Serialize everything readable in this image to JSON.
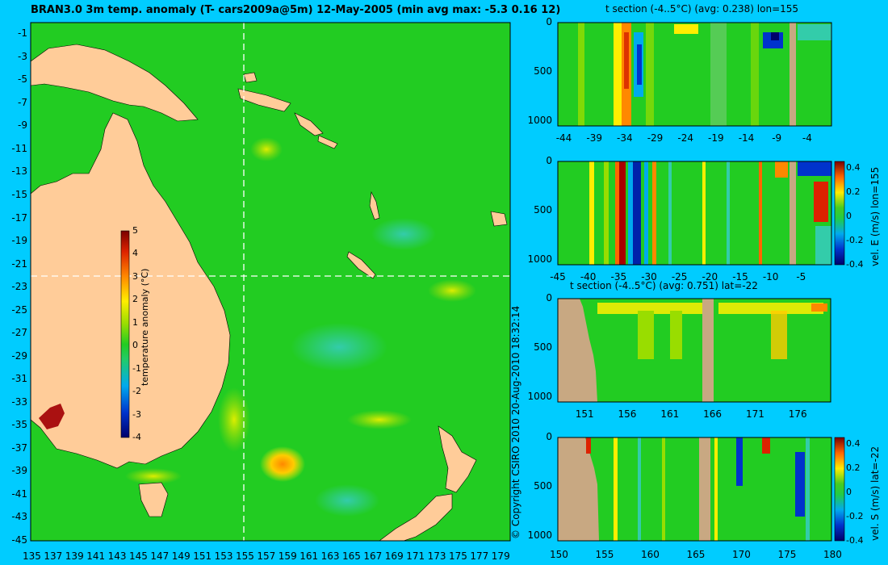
{
  "main": {
    "title": "BRAN3.0 3m temp. anomaly (T- cars2009a@5m) 12-May-2005 (min avg max: -5.3 0.16 12)",
    "colorbar_label": "temperature anomaly (°C)",
    "copyright": "© Copyright CSIRO 2010   20-Aug-2010 18:32:14"
  },
  "panels": {
    "p1_title": "t section (-4..5°C) (avg: 0.238) lon=155",
    "p2_label": "vel. E (m/s) lon=155",
    "p3_title": "t section (-4..5°C) (avg: 0.751) lat=-22",
    "p4_label": "vel. S (m/s) lat=-22"
  },
  "colors": {
    "background": "#00CCFF",
    "ocean": "#22CC22",
    "land": "#FFCC99",
    "section_land": "#C8A882"
  },
  "chart_data": [
    {
      "type": "heatmap",
      "title": "BRAN3.0 3m temp. anomaly (T- cars2009a@5m) 12-May-2005 (min avg max: -5.3 0.16 12)",
      "x_ticks": [
        "135",
        "137",
        "139",
        "141",
        "143",
        "145",
        "147",
        "149",
        "151",
        "153",
        "155",
        "157",
        "159",
        "161",
        "163",
        "165",
        "167",
        "169",
        "171",
        "173",
        "175",
        "177",
        "179"
      ],
      "y_ticks": [
        "-1",
        "-3",
        "-5",
        "-7",
        "-9",
        "-11",
        "-13",
        "-15",
        "-17",
        "-19",
        "-21",
        "-23",
        "-25",
        "-27",
        "-29",
        "-31",
        "-33",
        "-35",
        "-37",
        "-39",
        "-41",
        "-43",
        "-45"
      ],
      "xlim": [
        135,
        180
      ],
      "ylim": [
        -45,
        0
      ],
      "crosshair": {
        "lon": 155,
        "lat": -22
      },
      "colorbar": {
        "label": "temperature anomaly (°C)",
        "range": [
          -4,
          5
        ],
        "ticks": [
          "5",
          "4",
          "3",
          "2",
          "1",
          "0",
          "-1",
          "-2",
          "-3",
          "-4"
        ]
      },
      "summary": {
        "min": -5.3,
        "avg": 0.16,
        "max": 12
      }
    },
    {
      "type": "heatmap",
      "title": "t section (-4..5°C) (avg: 0.238) lon=155",
      "x_ticks": [
        "-44",
        "-39",
        "-34",
        "-29",
        "-24",
        "-19",
        "-14",
        "-9",
        "-4"
      ],
      "y_ticks": [
        "0",
        "500",
        "1000"
      ],
      "xlim": [
        -45,
        0
      ],
      "ylim": [
        1050,
        0
      ]
    },
    {
      "type": "heatmap",
      "title": "",
      "x_ticks": [
        "-45",
        "-40",
        "-35",
        "-30",
        "-25",
        "-20",
        "-15",
        "-10",
        "-5"
      ],
      "y_ticks": [
        "0",
        "500",
        "1000"
      ],
      "xlim": [
        -45,
        0
      ],
      "ylim": [
        1050,
        0
      ],
      "colorbar": {
        "label": "vel. E (m/s) lon=155",
        "range": [
          -0.4,
          0.45
        ],
        "ticks": [
          "0.4",
          "0.2",
          "0",
          "-0.2",
          "-0.4"
        ]
      }
    },
    {
      "type": "heatmap",
      "title": "t section (-4..5°C) (avg: 0.751) lat=-22",
      "x_ticks": [
        "151",
        "156",
        "161",
        "166",
        "171",
        "176"
      ],
      "y_ticks": [
        "0",
        "500",
        "1000"
      ],
      "xlim": [
        148,
        180
      ],
      "ylim": [
        1050,
        0
      ]
    },
    {
      "type": "heatmap",
      "title": "",
      "x_ticks": [
        "150",
        "155",
        "160",
        "165",
        "170",
        "175",
        "180"
      ],
      "y_ticks": [
        "0",
        "500",
        "1000"
      ],
      "xlim": [
        150,
        180
      ],
      "ylim": [
        1050,
        0
      ],
      "colorbar": {
        "label": "vel. S (m/s) lat=-22",
        "range": [
          -0.4,
          0.45
        ],
        "ticks": [
          "0.4",
          "0.2",
          "0",
          "-0.2",
          "-0.4"
        ]
      }
    }
  ]
}
